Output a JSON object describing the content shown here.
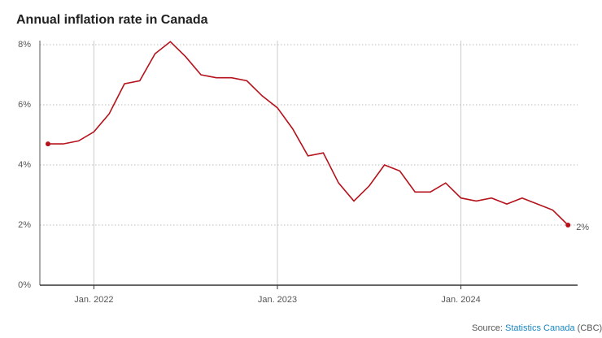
{
  "chart_data": {
    "type": "line",
    "title": "Annual inflation rate in Canada",
    "categories": [
      null,
      null,
      null,
      "Jan. 2022",
      null,
      null,
      null,
      null,
      null,
      null,
      null,
      null,
      null,
      null,
      null,
      "Jan. 2023",
      null,
      null,
      null,
      null,
      null,
      null,
      null,
      null,
      null,
      null,
      null,
      "Jan. 2024",
      null,
      null,
      null,
      null,
      null,
      null,
      null
    ],
    "series": [
      {
        "name": "Annual inflation rate",
        "color": "#b5121b",
        "values": [
          4.7,
          4.7,
          4.8,
          5.1,
          5.7,
          6.7,
          6.8,
          7.7,
          8.1,
          7.6,
          7.0,
          6.9,
          6.9,
          6.8,
          6.3,
          5.9,
          5.2,
          4.3,
          4.4,
          3.4,
          2.8,
          3.3,
          4.0,
          3.8,
          3.1,
          3.1,
          3.4,
          2.9,
          2.8,
          2.9,
          2.7,
          2.9,
          2.7,
          2.5,
          2.0
        ],
        "value_labels": [
          null,
          null,
          null,
          null,
          null,
          null,
          null,
          null,
          null,
          null,
          null,
          null,
          null,
          null,
          null,
          null,
          null,
          null,
          null,
          null,
          null,
          null,
          null,
          null,
          null,
          null,
          null,
          null,
          null,
          null,
          null,
          null,
          null,
          null,
          "2%"
        ]
      }
    ],
    "ylim": [
      0,
      8
    ],
    "yticks": [
      {
        "value": 0,
        "label": "0%"
      },
      {
        "value": 2,
        "label": "2%"
      },
      {
        "value": 4,
        "label": "4%"
      },
      {
        "value": 6,
        "label": "6%"
      },
      {
        "value": 8,
        "label": "8%"
      }
    ],
    "grid": true,
    "source": {
      "label": "Source:",
      "name": "Statistics Canada",
      "note": "(CBC)"
    }
  }
}
